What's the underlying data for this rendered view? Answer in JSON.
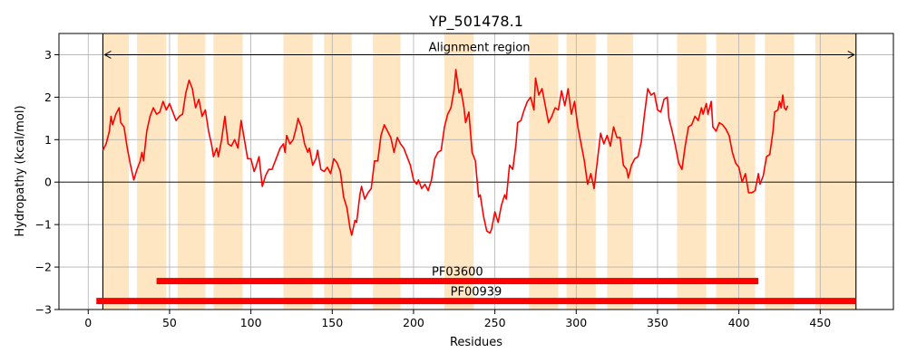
{
  "chart_data": {
    "type": "line",
    "title": "YP_501478.1",
    "xlabel": "Residues",
    "ylabel": "Hydropathy (kcal/mol)",
    "xlim": [
      -18,
      495
    ],
    "ylim": [
      -3,
      3.5
    ],
    "xticks": [
      0,
      50,
      100,
      150,
      200,
      250,
      300,
      350,
      400,
      450
    ],
    "yticks": [
      -3,
      -2,
      -1,
      0,
      1,
      2,
      3
    ],
    "grid": true,
    "colors": {
      "line": "#ff0000",
      "band": "#ffe6c2",
      "domain": "#ff0000",
      "axis": "#000000",
      "grid": "#b0b0b0"
    },
    "alignment_region": {
      "label": "Alignment region",
      "start": 9,
      "end": 472,
      "y": 3.0
    },
    "highlight_bands": [
      [
        9,
        25
      ],
      [
        30,
        48
      ],
      [
        55,
        72
      ],
      [
        77,
        95
      ],
      [
        120,
        138
      ],
      [
        145,
        162
      ],
      [
        175,
        192
      ],
      [
        219,
        237
      ],
      [
        271,
        289
      ],
      [
        294,
        312
      ],
      [
        319,
        335
      ],
      [
        362,
        380
      ],
      [
        386,
        410
      ],
      [
        416,
        434
      ],
      [
        447,
        472
      ]
    ],
    "domains": [
      {
        "name": "PF03600",
        "start": 42,
        "end": 412,
        "y": -2.33
      },
      {
        "name": "PF00939",
        "start": 5,
        "end": 472,
        "y": -2.8
      }
    ],
    "series": [
      {
        "points": [
          [
            9,
            0.75
          ],
          [
            11,
            0.9
          ],
          [
            13,
            1.2
          ],
          [
            14,
            1.55
          ],
          [
            15,
            1.35
          ],
          [
            17,
            1.6
          ],
          [
            19,
            1.75
          ],
          [
            20,
            1.4
          ],
          [
            22,
            1.3
          ],
          [
            24,
            0.8
          ],
          [
            26,
            0.4
          ],
          [
            28,
            0.05
          ],
          [
            30,
            0.3
          ],
          [
            32,
            0.5
          ],
          [
            33,
            0.7
          ],
          [
            34,
            0.5
          ],
          [
            36,
            1.2
          ],
          [
            38,
            1.55
          ],
          [
            40,
            1.75
          ],
          [
            42,
            1.6
          ],
          [
            44,
            1.65
          ],
          [
            46,
            1.9
          ],
          [
            48,
            1.7
          ],
          [
            50,
            1.85
          ],
          [
            52,
            1.65
          ],
          [
            54,
            1.45
          ],
          [
            56,
            1.55
          ],
          [
            58,
            1.6
          ],
          [
            60,
            2.1
          ],
          [
            62,
            2.4
          ],
          [
            64,
            2.2
          ],
          [
            66,
            1.75
          ],
          [
            68,
            1.95
          ],
          [
            70,
            1.55
          ],
          [
            72,
            1.7
          ],
          [
            74,
            1.2
          ],
          [
            76,
            0.85
          ],
          [
            77,
            0.6
          ],
          [
            79,
            0.8
          ],
          [
            80,
            0.6
          ],
          [
            82,
            1.0
          ],
          [
            84,
            1.55
          ],
          [
            86,
            0.9
          ],
          [
            88,
            0.85
          ],
          [
            90,
            1.0
          ],
          [
            92,
            0.8
          ],
          [
            94,
            1.45
          ],
          [
            96,
            1.0
          ],
          [
            98,
            0.55
          ],
          [
            100,
            0.55
          ],
          [
            102,
            0.25
          ],
          [
            103,
            0.35
          ],
          [
            105,
            0.6
          ],
          [
            107,
            -0.1
          ],
          [
            109,
            0.15
          ],
          [
            111,
            0.3
          ],
          [
            113,
            0.3
          ],
          [
            116,
            0.6
          ],
          [
            118,
            0.8
          ],
          [
            120,
            0.9
          ],
          [
            121,
            0.7
          ],
          [
            122,
            1.1
          ],
          [
            124,
            0.9
          ],
          [
            126,
            1.0
          ],
          [
            128,
            1.3
          ],
          [
            129,
            1.5
          ],
          [
            131,
            1.3
          ],
          [
            133,
            0.9
          ],
          [
            135,
            0.7
          ],
          [
            136,
            0.8
          ],
          [
            138,
            0.4
          ],
          [
            140,
            0.55
          ],
          [
            141,
            0.75
          ],
          [
            143,
            0.3
          ],
          [
            145,
            0.25
          ],
          [
            147,
            0.35
          ],
          [
            149,
            0.2
          ],
          [
            151,
            0.55
          ],
          [
            153,
            0.45
          ],
          [
            155,
            0.25
          ],
          [
            157,
            -0.35
          ],
          [
            159,
            -0.6
          ],
          [
            161,
            -1.1
          ],
          [
            162,
            -1.25
          ],
          [
            164,
            -0.9
          ],
          [
            165,
            -0.95
          ],
          [
            167,
            -0.3
          ],
          [
            168,
            -0.1
          ],
          [
            170,
            -0.4
          ],
          [
            172,
            -0.25
          ],
          [
            174,
            -0.15
          ],
          [
            176,
            0.5
          ],
          [
            178,
            0.5
          ],
          [
            180,
            1.1
          ],
          [
            182,
            1.35
          ],
          [
            184,
            1.2
          ],
          [
            186,
            1.05
          ],
          [
            188,
            0.7
          ],
          [
            190,
            1.05
          ],
          [
            192,
            0.9
          ],
          [
            194,
            0.8
          ],
          [
            196,
            0.6
          ],
          [
            198,
            0.4
          ],
          [
            200,
            0.05
          ],
          [
            202,
            -0.05
          ],
          [
            203,
            0.05
          ],
          [
            205,
            -0.15
          ],
          [
            207,
            -0.05
          ],
          [
            209,
            -0.2
          ],
          [
            211,
            0.05
          ],
          [
            213,
            0.55
          ],
          [
            215,
            0.7
          ],
          [
            217,
            0.75
          ],
          [
            219,
            1.3
          ],
          [
            221,
            1.6
          ],
          [
            223,
            1.75
          ],
          [
            225,
            2.2
          ],
          [
            226,
            2.65
          ],
          [
            228,
            2.1
          ],
          [
            229,
            2.2
          ],
          [
            231,
            1.75
          ],
          [
            232,
            1.4
          ],
          [
            234,
            1.65
          ],
          [
            236,
            0.7
          ],
          [
            238,
            0.5
          ],
          [
            240,
            -0.35
          ],
          [
            241,
            -0.3
          ],
          [
            243,
            -0.8
          ],
          [
            245,
            -1.15
          ],
          [
            247,
            -1.2
          ],
          [
            248,
            -1.1
          ],
          [
            250,
            -0.7
          ],
          [
            252,
            -0.95
          ],
          [
            254,
            -0.55
          ],
          [
            256,
            -0.3
          ],
          [
            257,
            -0.4
          ],
          [
            259,
            0.4
          ],
          [
            261,
            0.3
          ],
          [
            263,
            0.9
          ],
          [
            264,
            1.4
          ],
          [
            266,
            1.45
          ],
          [
            268,
            1.7
          ],
          [
            270,
            1.9
          ],
          [
            272,
            2.0
          ],
          [
            274,
            1.7
          ],
          [
            275,
            2.45
          ],
          [
            277,
            2.05
          ],
          [
            279,
            2.2
          ],
          [
            281,
            1.8
          ],
          [
            283,
            1.4
          ],
          [
            285,
            1.55
          ],
          [
            287,
            1.75
          ],
          [
            289,
            1.7
          ],
          [
            291,
            2.15
          ],
          [
            293,
            1.8
          ],
          [
            295,
            2.2
          ],
          [
            297,
            1.6
          ],
          [
            299,
            1.9
          ],
          [
            301,
            1.3
          ],
          [
            303,
            0.9
          ],
          [
            305,
            0.5
          ],
          [
            307,
            -0.05
          ],
          [
            309,
            0.2
          ],
          [
            311,
            -0.15
          ],
          [
            313,
            0.5
          ],
          [
            315,
            1.15
          ],
          [
            317,
            0.9
          ],
          [
            319,
            1.1
          ],
          [
            321,
            0.85
          ],
          [
            323,
            1.3
          ],
          [
            325,
            1.05
          ],
          [
            327,
            1.05
          ],
          [
            329,
            0.4
          ],
          [
            331,
            0.3
          ],
          [
            332,
            0.1
          ],
          [
            334,
            0.4
          ],
          [
            336,
            0.55
          ],
          [
            338,
            0.6
          ],
          [
            340,
            0.95
          ],
          [
            342,
            1.6
          ],
          [
            344,
            2.2
          ],
          [
            346,
            2.05
          ],
          [
            348,
            2.1
          ],
          [
            350,
            1.7
          ],
          [
            352,
            1.65
          ],
          [
            354,
            1.95
          ],
          [
            356,
            2.0
          ],
          [
            357,
            1.5
          ],
          [
            359,
            1.2
          ],
          [
            361,
            0.85
          ],
          [
            363,
            0.45
          ],
          [
            365,
            0.3
          ],
          [
            367,
            0.85
          ],
          [
            369,
            1.3
          ],
          [
            371,
            1.35
          ],
          [
            373,
            1.55
          ],
          [
            375,
            1.45
          ],
          [
            377,
            1.75
          ],
          [
            378,
            1.6
          ],
          [
            380,
            1.85
          ],
          [
            381,
            1.6
          ],
          [
            383,
            1.9
          ],
          [
            384,
            1.3
          ],
          [
            386,
            1.2
          ],
          [
            388,
            1.4
          ],
          [
            390,
            1.35
          ],
          [
            392,
            1.25
          ],
          [
            394,
            1.1
          ],
          [
            396,
            0.7
          ],
          [
            398,
            0.45
          ],
          [
            400,
            0.35
          ],
          [
            402,
            0.0
          ],
          [
            404,
            0.2
          ],
          [
            406,
            -0.25
          ],
          [
            408,
            -0.25
          ],
          [
            410,
            -0.2
          ],
          [
            412,
            0.2
          ],
          [
            413,
            -0.05
          ],
          [
            415,
            0.15
          ],
          [
            417,
            0.6
          ],
          [
            419,
            0.65
          ],
          [
            421,
            1.2
          ],
          [
            422,
            1.65
          ],
          [
            424,
            1.7
          ],
          [
            425,
            1.9
          ],
          [
            426,
            1.75
          ],
          [
            427,
            2.05
          ],
          [
            428,
            1.75
          ],
          [
            429,
            1.7
          ],
          [
            430,
            1.8
          ]
        ]
      }
    ]
  }
}
